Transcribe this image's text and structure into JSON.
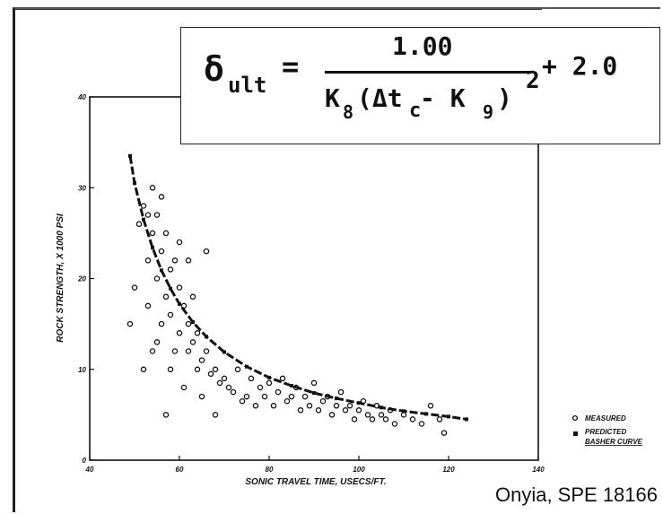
{
  "chart_data": {
    "type": "scatter",
    "xlabel": "SONIC TRAVEL TIME, USECS/FT.",
    "ylabel": "ROCK STRENGTH, X 1000 PSI",
    "xlim": [
      40,
      140
    ],
    "ylim": [
      0,
      40
    ],
    "xticks": [
      "40",
      "60",
      "80",
      "100",
      "120",
      "140"
    ],
    "yticks": [
      "0",
      "10",
      "20",
      "30",
      "40"
    ],
    "legend_position": "bottom-right, outside plot",
    "legend": [
      {
        "marker": "open-circle",
        "label": "MEASURED"
      },
      {
        "marker": "filled-square",
        "label": "PREDICTED",
        "sublabel": "BASHER CURVE"
      }
    ],
    "series": [
      {
        "name": "MEASURED",
        "marker": "open-circle",
        "color": "#111111",
        "generated_from": "dense cloud scattered around the predicted curve",
        "x": [
          49,
          50,
          51,
          52,
          53,
          53,
          54,
          54,
          55,
          55,
          56,
          56,
          57,
          57,
          58,
          58,
          59,
          60,
          60,
          61,
          62,
          62,
          63,
          64,
          64,
          65,
          66,
          67,
          68,
          69,
          70,
          71,
          72,
          73,
          74,
          75,
          76,
          77,
          78,
          79,
          80,
          81,
          82,
          83,
          84,
          85,
          86,
          87,
          88,
          89,
          90,
          91,
          92,
          93,
          94,
          95,
          96,
          97,
          98,
          99,
          100,
          101,
          102,
          103,
          104,
          105,
          106,
          107,
          108,
          110,
          112,
          114,
          116,
          118,
          119,
          63,
          66,
          65,
          68,
          58,
          57,
          54,
          53,
          60,
          62,
          61,
          55,
          56,
          59,
          52
        ],
        "y": [
          15,
          19,
          26,
          28,
          27,
          22,
          30,
          25,
          27,
          20,
          29,
          23,
          25,
          18,
          21,
          16,
          22,
          19,
          14,
          17,
          15,
          12,
          13,
          14,
          10,
          11,
          12,
          9.5,
          10,
          8.5,
          9,
          8,
          7.5,
          10,
          6.5,
          7,
          9,
          6,
          8,
          7,
          8.5,
          6,
          7.5,
          9,
          6.5,
          7,
          8,
          5.5,
          7,
          6,
          8.5,
          5.5,
          6.5,
          7,
          5,
          6,
          7.5,
          5.5,
          6,
          4.5,
          5.5,
          6.5,
          5,
          4.5,
          6,
          5,
          4.5,
          5.5,
          4,
          5,
          4.5,
          4,
          6,
          4.5,
          3,
          18,
          23,
          7,
          5,
          10,
          5,
          12,
          17,
          24,
          22,
          8,
          13,
          15,
          12,
          10
        ]
      },
      {
        "name": "PREDICTED",
        "marker": "filled-square",
        "color": "#111111",
        "x": [
          49,
          50,
          52,
          54,
          56,
          58,
          60,
          63,
          66,
          70,
          75,
          80,
          85,
          90,
          95,
          100,
          105,
          110,
          115,
          120,
          124
        ],
        "y": [
          33.5,
          30.5,
          26.5,
          23.4,
          20.9,
          18.9,
          17.2,
          15.2,
          13.6,
          11.9,
          10.3,
          9.1,
          8.2,
          7.4,
          6.8,
          6.3,
          5.8,
          5.4,
          5.1,
          4.8,
          4.5
        ]
      }
    ]
  },
  "formula": {
    "delta": "δ",
    "sub_ult": "ult",
    "equals": "=",
    "numerator": "1.00",
    "denominator": "K",
    "k8_sub": "8",
    "den_mid": "(Δt",
    "c_sub": "c",
    "den_end": " - K",
    "k9_sub": "9",
    "den_close": ")",
    "power": "2",
    "plus": "+ 2.0"
  },
  "credit": "Onyia, SPE 18166",
  "colors": {
    "ink": "#111111",
    "background": "#ffffff"
  }
}
